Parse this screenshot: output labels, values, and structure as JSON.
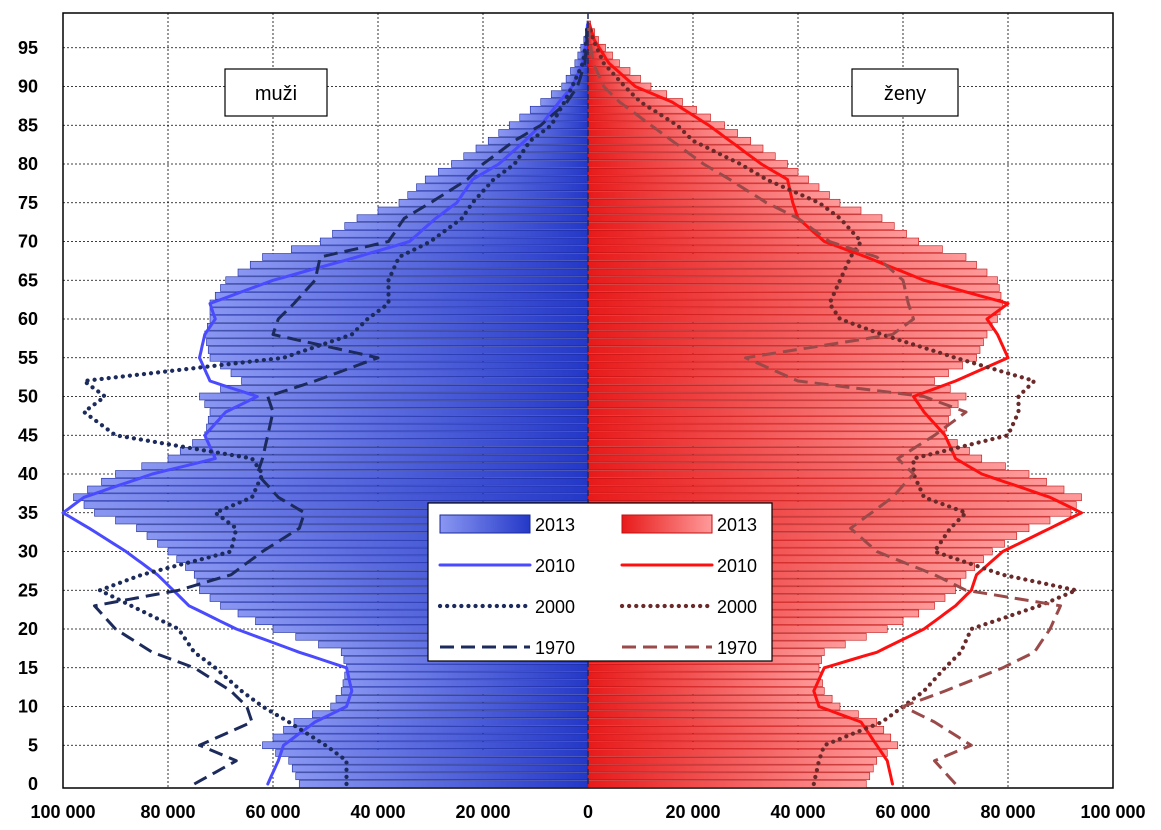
{
  "chart_data": {
    "type": "population-pyramid",
    "title": "",
    "x_axis": {
      "ticks": [
        "100 000",
        "80 000",
        "60 000",
        "40 000",
        "20 000",
        "0",
        "20 000",
        "40 000",
        "60 000",
        "80 000",
        "100 000"
      ],
      "range": [
        -100000,
        100000
      ]
    },
    "y_axis": {
      "ticks": [
        "0",
        "5",
        "10",
        "15",
        "20",
        "25",
        "30",
        "35",
        "40",
        "45",
        "50",
        "55",
        "60",
        "65",
        "70",
        "75",
        "80",
        "85",
        "90",
        "95"
      ],
      "range": [
        0,
        98
      ]
    },
    "grid": true,
    "labels": {
      "men": "muži",
      "women": "ženy"
    },
    "legend": {
      "placement": "center",
      "entries": [
        {
          "side": "men",
          "year": "2013",
          "style": "bar"
        },
        {
          "side": "women",
          "year": "2013",
          "style": "bar"
        },
        {
          "side": "men",
          "year": "2010",
          "style": "solid"
        },
        {
          "side": "women",
          "year": "2010",
          "style": "solid"
        },
        {
          "side": "men",
          "year": "2000",
          "style": "dotted"
        },
        {
          "side": "women",
          "year": "2000",
          "style": "dotted"
        },
        {
          "side": "men",
          "year": "1970",
          "style": "dashed"
        },
        {
          "side": "women",
          "year": "1970",
          "style": "dashed"
        }
      ]
    },
    "colors": {
      "men_bar": "#3b4fe0",
      "women_bar": "#f03030",
      "men_2010": "#4a4aff",
      "women_2010": "#ff1010",
      "men_2000": "#1c2b5c",
      "women_2000": "#6b2a2a",
      "men_1970": "#1c2b5c",
      "women_1970": "#9b4a4a"
    },
    "age_nodes": [
      0,
      3,
      5,
      8,
      10,
      12,
      15,
      17,
      20,
      23,
      25,
      27,
      30,
      33,
      35,
      37,
      40,
      42,
      45,
      48,
      50,
      52,
      55,
      58,
      60,
      62,
      65,
      68,
      70,
      73,
      75,
      78,
      80,
      83,
      85,
      88,
      90,
      93,
      96,
      98
    ],
    "series": [
      {
        "name": "muži 2013",
        "side": "men",
        "style": "bar",
        "values": [
          55000,
          57000,
          62000,
          56000,
          49000,
          47000,
          46000,
          47000,
          60000,
          70000,
          74000,
          75000,
          80000,
          86000,
          94000,
          98000,
          90000,
          80000,
          73000,
          72000,
          74000,
          66000,
          72000,
          73000,
          72000,
          72000,
          69000,
          62000,
          51000,
          44000,
          36000,
          31000,
          26000,
          19000,
          15000,
          9000,
          5000,
          2500,
          800,
          200
        ]
      },
      {
        "name": "ženy 2013",
        "side": "women",
        "style": "bar",
        "values": [
          53000,
          55000,
          59000,
          55000,
          48000,
          45000,
          44000,
          45000,
          57000,
          66000,
          70000,
          72000,
          77000,
          84000,
          92000,
          94000,
          84000,
          75000,
          68000,
          69000,
          72000,
          66000,
          74000,
          76000,
          78000,
          79000,
          78000,
          72000,
          63000,
          56000,
          48000,
          42000,
          38000,
          31000,
          26000,
          18000,
          12000,
          6000,
          2000,
          500
        ]
      },
      {
        "name": "muži 2010",
        "side": "men",
        "style": "solid",
        "values": [
          61000,
          59000,
          58000,
          52000,
          46000,
          45000,
          46000,
          55000,
          67000,
          76000,
          79000,
          82000,
          88000,
          95000,
          100000,
          96000,
          83000,
          71000,
          73000,
          69000,
          63000,
          72000,
          74000,
          73000,
          71000,
          72000,
          60000,
          44000,
          34000,
          29000,
          25000,
          22000,
          17000,
          12000,
          9000,
          5500,
          3000,
          1000,
          300,
          100
        ]
      },
      {
        "name": "ženy 2010",
        "side": "women",
        "style": "solid",
        "values": [
          58000,
          57000,
          55000,
          52000,
          44000,
          43000,
          45000,
          55000,
          64000,
          70000,
          73000,
          74000,
          79000,
          88000,
          94000,
          88000,
          75000,
          70000,
          68000,
          64000,
          62000,
          70000,
          80000,
          78000,
          76000,
          80000,
          64000,
          53000,
          45000,
          40000,
          39000,
          38000,
          33000,
          27000,
          23000,
          16000,
          9000,
          4000,
          1200,
          300
        ]
      },
      {
        "name": "muži 2000",
        "side": "men",
        "style": "dotted",
        "values": [
          46000,
          46000,
          50000,
          57000,
          62000,
          66000,
          71000,
          75000,
          78000,
          87000,
          93000,
          85000,
          68000,
          67000,
          71000,
          64000,
          62000,
          64000,
          90000,
          96000,
          92000,
          96000,
          58000,
          45000,
          42000,
          38000,
          38000,
          36000,
          30000,
          24000,
          22000,
          18000,
          14000,
          11000,
          7000,
          4500,
          3000,
          1000,
          300,
          100
        ]
      },
      {
        "name": "ženy 2000",
        "side": "women",
        "style": "dotted",
        "values": [
          43000,
          44000,
          45000,
          56000,
          60000,
          64000,
          68000,
          71000,
          73000,
          86000,
          93000,
          79000,
          66000,
          69000,
          72000,
          64000,
          62000,
          62000,
          80000,
          82000,
          82000,
          85000,
          70000,
          56000,
          48000,
          46000,
          48000,
          50000,
          52000,
          48000,
          44000,
          34000,
          29000,
          20000,
          17000,
          10000,
          7000,
          3000,
          1000,
          200
        ]
      },
      {
        "name": "muži 1970",
        "side": "men",
        "style": "dashed",
        "values": [
          75000,
          67000,
          74000,
          64000,
          65000,
          68000,
          75000,
          83000,
          90000,
          94000,
          78000,
          68000,
          62000,
          55000,
          54000,
          59000,
          63000,
          62000,
          61000,
          60000,
          61000,
          52000,
          40000,
          60000,
          59000,
          56000,
          52000,
          51000,
          38000,
          35000,
          30000,
          23000,
          20000,
          14000,
          9000,
          4000,
          2000,
          600,
          200,
          100
        ]
      },
      {
        "name": "ženy 1970",
        "side": "women",
        "style": "dashed",
        "values": [
          70000,
          66000,
          73000,
          66000,
          60000,
          68000,
          79000,
          85000,
          88000,
          90000,
          72000,
          66000,
          55000,
          50000,
          54000,
          58000,
          62000,
          59000,
          66000,
          72000,
          64000,
          40000,
          30000,
          58000,
          62000,
          61000,
          60000,
          55000,
          46000,
          40000,
          34000,
          27000,
          22000,
          16000,
          12000,
          6000,
          3000,
          1000,
          300,
          100
        ]
      }
    ]
  }
}
